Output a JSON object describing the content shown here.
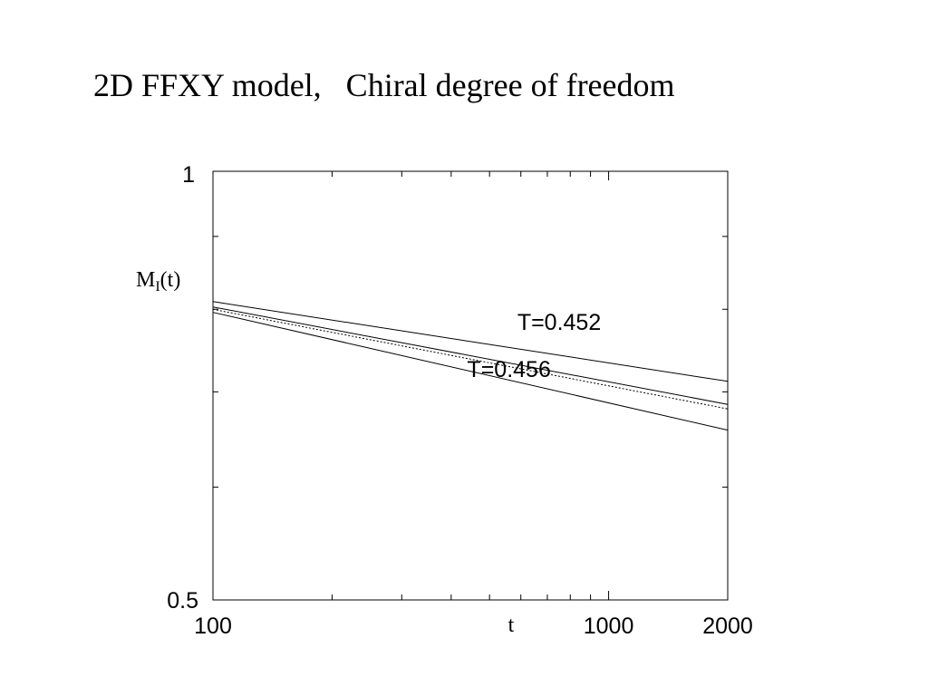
{
  "slide": {
    "title": "2D FFXY model,   Chiral degree of freedom"
  },
  "chart_data": {
    "type": "line",
    "xscale": "log",
    "yscale": "log",
    "xlim": [
      100,
      2000
    ],
    "ylim": [
      0.5,
      1
    ],
    "xticks": [
      "100",
      "1000",
      "2000"
    ],
    "yticks": [
      "1",
      "0.5"
    ],
    "xlabel": "t",
    "ylabel": {
      "main": "M",
      "subscript": "I",
      "suffix": "(t)"
    },
    "grid": false,
    "series": [
      {
        "name": "T=0.452",
        "style": "solid",
        "x": [
          100,
          2000
        ],
        "y": [
          0.81,
          0.712
        ]
      },
      {
        "style": "solid",
        "x": [
          100,
          2000
        ],
        "y": [
          0.803,
          0.686
        ]
      },
      {
        "style": "dotted",
        "x": [
          100,
          2000
        ],
        "y": [
          0.8,
          0.681
        ]
      },
      {
        "name": "T=0.456",
        "style": "solid",
        "x": [
          100,
          2000
        ],
        "y": [
          0.796,
          0.658
        ]
      }
    ],
    "annotations": [
      {
        "text": "T=0.452",
        "x": 750,
        "y": 0.774
      },
      {
        "text": "T=0.456",
        "x": 560,
        "y": 0.717
      }
    ]
  }
}
